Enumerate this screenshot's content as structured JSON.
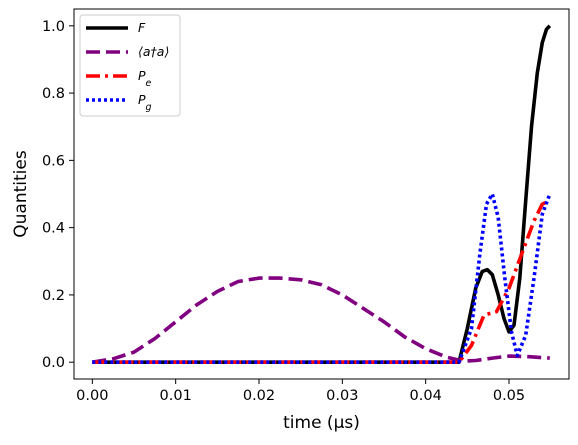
{
  "chart_data": {
    "type": "line",
    "xlabel": "time (μs)",
    "ylabel": "Quantities",
    "xlim": [
      -0.0022,
      0.0572
    ],
    "ylim": [
      -0.05,
      1.05
    ],
    "xticks": [
      {
        "v": 0.0,
        "label": "0.00"
      },
      {
        "v": 0.01,
        "label": "0.01"
      },
      {
        "v": 0.02,
        "label": "0.02"
      },
      {
        "v": 0.03,
        "label": "0.03"
      },
      {
        "v": 0.04,
        "label": "0.04"
      },
      {
        "v": 0.05,
        "label": "0.05"
      }
    ],
    "yticks": [
      {
        "v": 0.0,
        "label": "0.0"
      },
      {
        "v": 0.2,
        "label": "0.2"
      },
      {
        "v": 0.4,
        "label": "0.4"
      },
      {
        "v": 0.6,
        "label": "0.6"
      },
      {
        "v": 0.8,
        "label": "0.8"
      },
      {
        "v": 1.0,
        "label": "1.0"
      }
    ],
    "grid": false,
    "legend_position": "upper-left",
    "series": [
      {
        "name": "F",
        "color": "#000000",
        "dash": "solid",
        "points": [
          [
            0.0,
            0.0
          ],
          [
            0.01,
            0.0
          ],
          [
            0.02,
            0.0
          ],
          [
            0.03,
            0.0
          ],
          [
            0.04,
            0.0
          ],
          [
            0.044,
            0.0
          ],
          [
            0.045,
            0.1
          ],
          [
            0.046,
            0.22
          ],
          [
            0.0468,
            0.27
          ],
          [
            0.0474,
            0.275
          ],
          [
            0.048,
            0.26
          ],
          [
            0.0487,
            0.2
          ],
          [
            0.0494,
            0.13
          ],
          [
            0.05,
            0.09
          ],
          [
            0.0506,
            0.11
          ],
          [
            0.0513,
            0.25
          ],
          [
            0.052,
            0.48
          ],
          [
            0.0527,
            0.7
          ],
          [
            0.0534,
            0.86
          ],
          [
            0.054,
            0.95
          ],
          [
            0.0545,
            0.99
          ],
          [
            0.0549,
            1.0
          ]
        ]
      },
      {
        "name": "⟨a†a⟩",
        "color": "#800080",
        "dash": "dashed",
        "points": [
          [
            0.0,
            0.0
          ],
          [
            0.0025,
            0.01
          ],
          [
            0.005,
            0.03
          ],
          [
            0.0075,
            0.07
          ],
          [
            0.01,
            0.12
          ],
          [
            0.0125,
            0.17
          ],
          [
            0.015,
            0.21
          ],
          [
            0.0175,
            0.24
          ],
          [
            0.02,
            0.25
          ],
          [
            0.0225,
            0.25
          ],
          [
            0.025,
            0.245
          ],
          [
            0.0275,
            0.23
          ],
          [
            0.03,
            0.2
          ],
          [
            0.0325,
            0.16
          ],
          [
            0.035,
            0.12
          ],
          [
            0.0375,
            0.075
          ],
          [
            0.04,
            0.04
          ],
          [
            0.0425,
            0.015
          ],
          [
            0.0445,
            0.003
          ],
          [
            0.046,
            0.005
          ],
          [
            0.048,
            0.012
          ],
          [
            0.05,
            0.018
          ],
          [
            0.052,
            0.017
          ],
          [
            0.0549,
            0.012
          ]
        ]
      },
      {
        "name": "P_e",
        "color": "#ff0000",
        "dash": "dashdot",
        "points": [
          [
            0.0,
            0.0
          ],
          [
            0.01,
            0.0
          ],
          [
            0.02,
            0.0
          ],
          [
            0.03,
            0.0
          ],
          [
            0.04,
            0.0
          ],
          [
            0.044,
            0.0
          ],
          [
            0.0455,
            0.05
          ],
          [
            0.047,
            0.14
          ],
          [
            0.0485,
            0.15
          ],
          [
            0.05,
            0.22
          ],
          [
            0.0515,
            0.32
          ],
          [
            0.053,
            0.42
          ],
          [
            0.054,
            0.47
          ],
          [
            0.0549,
            0.48
          ]
        ]
      },
      {
        "name": "P_g",
        "color": "#0000ff",
        "dash": "dotted",
        "points": [
          [
            0.0,
            0.0
          ],
          [
            0.01,
            0.0
          ],
          [
            0.02,
            0.0
          ],
          [
            0.03,
            0.0
          ],
          [
            0.04,
            0.0
          ],
          [
            0.044,
            0.0
          ],
          [
            0.0455,
            0.1
          ],
          [
            0.0465,
            0.32
          ],
          [
            0.0473,
            0.47
          ],
          [
            0.048,
            0.5
          ],
          [
            0.0487,
            0.43
          ],
          [
            0.0495,
            0.25
          ],
          [
            0.0503,
            0.09
          ],
          [
            0.051,
            0.02
          ],
          [
            0.052,
            0.08
          ],
          [
            0.053,
            0.25
          ],
          [
            0.054,
            0.44
          ],
          [
            0.0549,
            0.5
          ]
        ]
      }
    ]
  }
}
